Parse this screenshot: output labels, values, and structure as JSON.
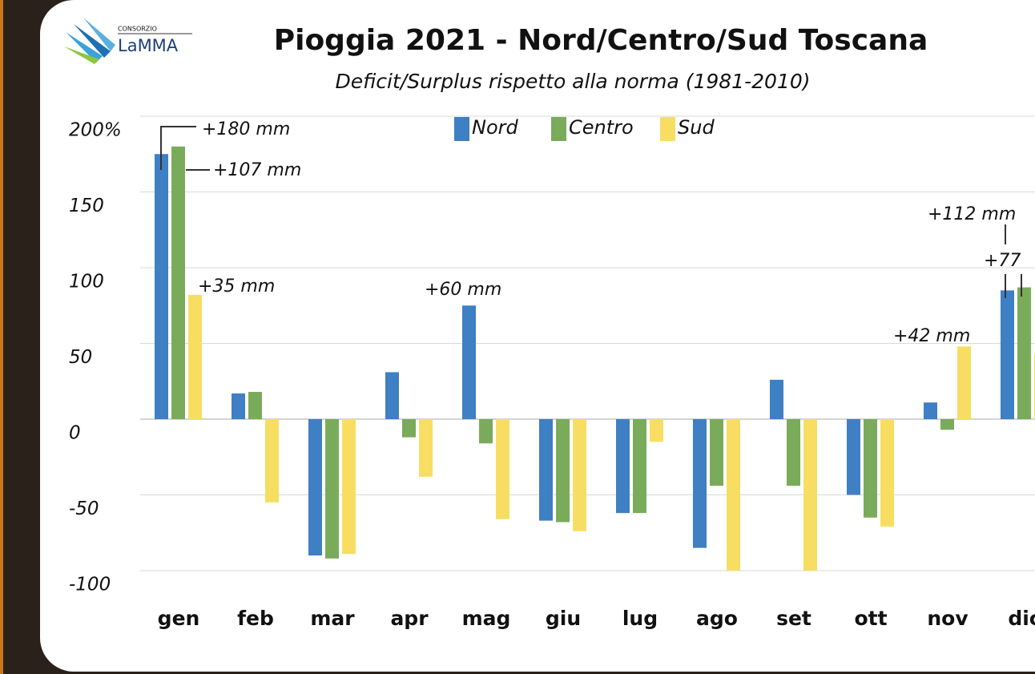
{
  "logo": {
    "top": "CONSORZIO",
    "name": "LaMMA"
  },
  "chart_data": {
    "type": "bar",
    "title": "Pioggia 2021 - Nord/Centro/Sud Toscana",
    "subtitle": "Deficit/Surplus rispetto alla norma (1981-2010)",
    "categories": [
      "gen",
      "feb",
      "mar",
      "apr",
      "mag",
      "giu",
      "lug",
      "ago",
      "set",
      "ott",
      "nov",
      "dic"
    ],
    "series": [
      {
        "name": "Nord",
        "color": "#3f7fc4",
        "values": [
          175,
          17,
          -90,
          31,
          75,
          -67,
          -62,
          -85,
          26,
          -50,
          11,
          85
        ]
      },
      {
        "name": "Centro",
        "color": "#7aab5a",
        "values": [
          180,
          18,
          -92,
          -12,
          -16,
          -68,
          -62,
          -44,
          -44,
          -65,
          -7,
          87
        ]
      },
      {
        "name": "Sud",
        "color": "#f7de62",
        "values": [
          82,
          -55,
          -89,
          -38,
          -66,
          -74,
          -15,
          -100,
          -100,
          -71,
          48,
          43
        ]
      }
    ],
    "ylim": [
      -100,
      200
    ],
    "yticks": [
      -100,
      -50,
      0,
      50,
      100,
      150,
      {
        "value": 200,
        "label": "200%"
      }
    ],
    "grid": true,
    "legend": "top",
    "annotations": [
      "+180 mm",
      "+107 mm",
      "+35 mm",
      "+60 mm",
      "+112 mm",
      "+77",
      "+42 mm"
    ]
  }
}
